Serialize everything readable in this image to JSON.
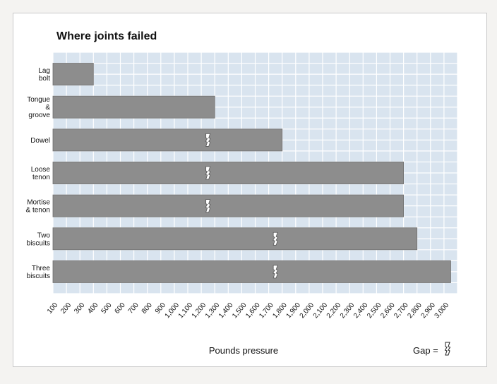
{
  "chart_data": {
    "type": "bar",
    "orientation": "horizontal",
    "title": "Where joints failed",
    "xlabel": "Pounds pressure",
    "ylabel": "",
    "xlim": [
      0,
      3000
    ],
    "x_tick_labels": [
      "100",
      "200",
      "300",
      "400",
      "500",
      "600",
      "700",
      "800",
      "900",
      "1,000",
      "1,100",
      "1,200",
      "1,300",
      "1,400",
      "1,500",
      "1,600",
      "1,700",
      "1,800",
      "1,900",
      "2,000",
      "2,100",
      "2,200",
      "2,300",
      "2,400",
      "2,500",
      "2,600",
      "2,700",
      "2,800",
      "2,900",
      "3,000"
    ],
    "categories": [
      [
        "Lag",
        "bolt"
      ],
      [
        "Tongue",
        "&",
        "groove"
      ],
      [
        "Dowel"
      ],
      [
        "Loose",
        "tenon"
      ],
      [
        "Mortise",
        "& tenon"
      ],
      [
        "Two",
        "biscuits"
      ],
      [
        "Three",
        "biscuits"
      ]
    ],
    "values": [
      300,
      1200,
      1700,
      2600,
      2600,
      2700,
      2950
    ],
    "gap_positions": [
      null,
      null,
      1100,
      1100,
      1100,
      1600,
      1600
    ],
    "grid": true,
    "legend": {
      "label": "Gap =",
      "placement": "bottom-right"
    },
    "colors": {
      "bar": "#8d8d8d",
      "grid_background": "#d9e4ef",
      "grid_line": "#ffffff",
      "gap": "#ffffff"
    }
  }
}
